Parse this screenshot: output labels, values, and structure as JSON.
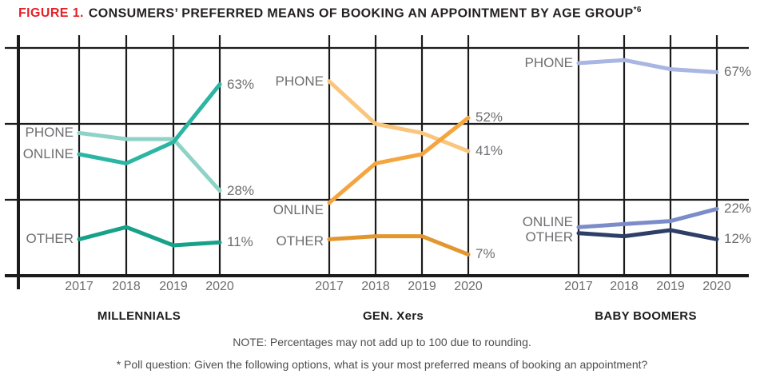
{
  "title": {
    "figure_label": "FIGURE 1.",
    "text": "CONSUMERS’ PREFERRED MEANS OF BOOKING AN APPOINTMENT BY AGE GROUP",
    "superscript": "*6"
  },
  "colors": {
    "figure_label": "#e42127",
    "title_text": "#231f20",
    "grid": "#1b1b1b",
    "label_gray": "#6d6e71"
  },
  "notes": {
    "note": "NOTE: Percentages may not add up to 100 due to rounding.",
    "poll": "* Poll question: Given the following options, what is your most preferred means of booking an appointment?"
  },
  "chart_data": [
    {
      "type": "line",
      "title": "MILLENNIALS",
      "x_labels": [
        "2017",
        "2018",
        "2019",
        "2020"
      ],
      "ylim": [
        0,
        79
      ],
      "gridlines_pct": [
        25,
        50,
        75
      ],
      "legend_position": "left-of-first-point",
      "series": [
        {
          "name": "PHONE",
          "color": "#8ed3c6",
          "values": [
            47,
            45,
            45,
            28
          ],
          "end_label": "28%"
        },
        {
          "name": "ONLINE",
          "color": "#2db5a4",
          "values": [
            40,
            37,
            44,
            63
          ],
          "end_label": "63%"
        },
        {
          "name": "OTHER",
          "color": "#17a189",
          "values": [
            12,
            16,
            10,
            11
          ],
          "end_label": "11%"
        }
      ]
    },
    {
      "type": "line",
      "title": "GEN. Xers",
      "x_labels": [
        "2017",
        "2018",
        "2019",
        "2020"
      ],
      "ylim": [
        0,
        79
      ],
      "gridlines_pct": [
        25,
        50,
        75
      ],
      "legend_position": "left-of-first-point",
      "series": [
        {
          "name": "PHONE",
          "color": "#fac67d",
          "values": [
            64,
            50,
            47,
            41
          ],
          "end_label": "41%"
        },
        {
          "name": "ONLINE",
          "color": "#f5a53f",
          "values": [
            24,
            37,
            40,
            52
          ],
          "end_label": "52%"
        },
        {
          "name": "OTHER",
          "color": "#e2962f",
          "values": [
            12,
            13,
            13,
            7
          ],
          "end_label": "7%"
        }
      ]
    },
    {
      "type": "line",
      "title": "BABY BOOMERS",
      "x_labels": [
        "2017",
        "2018",
        "2019",
        "2020"
      ],
      "ylim": [
        0,
        79
      ],
      "gridlines_pct": [
        25,
        50,
        75
      ],
      "legend_position": "left-of-first-point",
      "series": [
        {
          "name": "PHONE",
          "color": "#a9b6e2",
          "values": [
            70,
            71,
            68,
            67
          ],
          "end_label": "67%"
        },
        {
          "name": "ONLINE",
          "color": "#7b8cc9",
          "values": [
            16,
            17,
            18,
            22
          ],
          "end_label": "22%"
        },
        {
          "name": "OTHER",
          "color": "#2e3e68",
          "values": [
            14,
            13,
            15,
            12
          ],
          "end_label": "12%"
        }
      ]
    }
  ]
}
